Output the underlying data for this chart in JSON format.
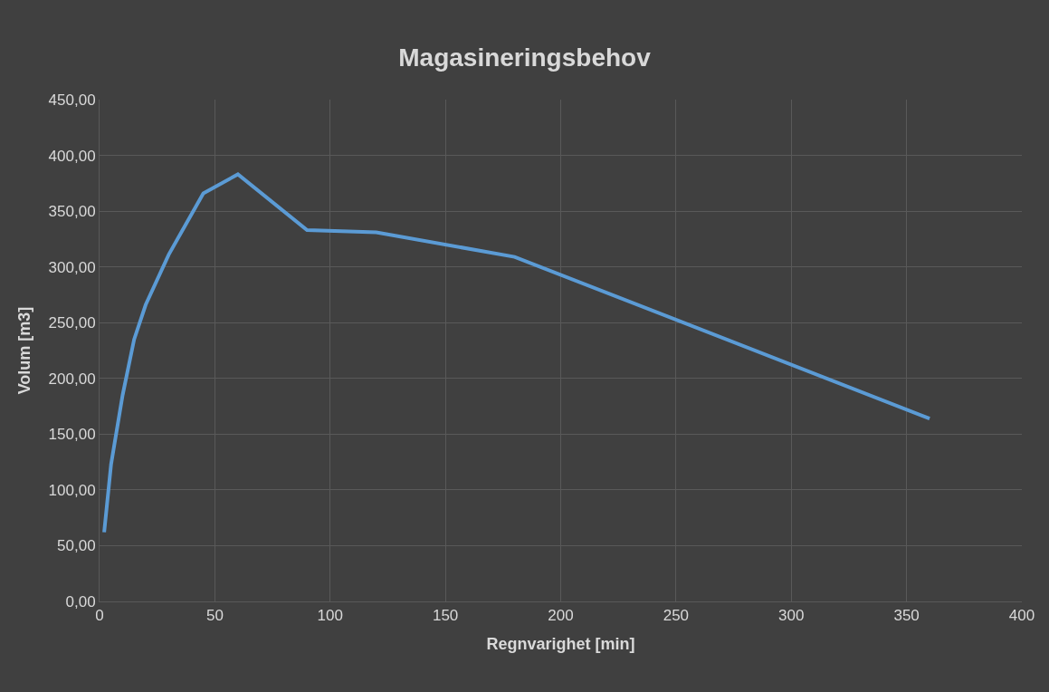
{
  "chart_data": {
    "type": "line",
    "title": "Magasineringsbehov",
    "xlabel": "Regnvarighet [min]",
    "ylabel": "Volum [m3]",
    "x": [
      2,
      5,
      10,
      15,
      20,
      30,
      45,
      60,
      90,
      120,
      180,
      360
    ],
    "series": [
      {
        "color": "#5b9bd5",
        "values": [
          62,
          123,
          185,
          235,
          266,
          311,
          366,
          383,
          333,
          331,
          309,
          164
        ]
      }
    ],
    "xlim": [
      0,
      400
    ],
    "xticks": [
      0,
      50,
      100,
      150,
      200,
      250,
      300,
      350,
      400
    ],
    "ylim": [
      0,
      450
    ],
    "yticks": [
      {
        "value": 0,
        "label": "0,00"
      },
      {
        "value": 50,
        "label": "50,00"
      },
      {
        "value": 100,
        "label": "100,00"
      },
      {
        "value": 150,
        "label": "150,00"
      },
      {
        "value": 200,
        "label": "200,00"
      },
      {
        "value": 250,
        "label": "250,00"
      },
      {
        "value": 300,
        "label": "300,00"
      },
      {
        "value": 350,
        "label": "350,00"
      },
      {
        "value": 400,
        "label": "400,00"
      },
      {
        "value": 450,
        "label": "450,00"
      }
    ],
    "grid": true,
    "marker": "none",
    "line_style": "solid",
    "legend": false
  }
}
